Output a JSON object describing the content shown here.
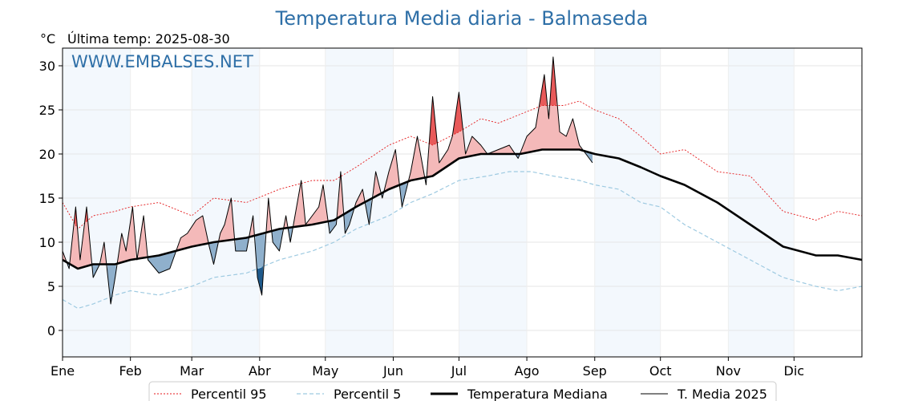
{
  "chart_data": {
    "type": "line",
    "title": "Temperatura Media diaria - Balmaseda",
    "unit_label": "°C",
    "subtitle": "Última temp: 2025-08-30",
    "watermark": "WWW.EMBALSES.NET",
    "ylim": [
      -3,
      32
    ],
    "yticks": [
      0,
      5,
      10,
      15,
      20,
      25,
      30
    ],
    "xlim_day": [
      1,
      366
    ],
    "months": [
      {
        "label": "Ene",
        "day": 1
      },
      {
        "label": "Feb",
        "day": 32
      },
      {
        "label": "Mar",
        "day": 60
      },
      {
        "label": "Abr",
        "day": 91
      },
      {
        "label": "May",
        "day": 121
      },
      {
        "label": "Jun",
        "day": 152
      },
      {
        "label": "Jul",
        "day": 182
      },
      {
        "label": "Ago",
        "day": 213
      },
      {
        "label": "Sep",
        "day": 244
      },
      {
        "label": "Oct",
        "day": 274
      },
      {
        "label": "Nov",
        "day": 305
      },
      {
        "label": "Dic",
        "day": 335
      }
    ],
    "grid": true,
    "legend_position": "bottom-center",
    "series": [
      {
        "key": "p95",
        "name": "Percentil 95",
        "color": "#e41a1c",
        "style": "dotted",
        "points": [
          [
            1,
            14.5
          ],
          [
            8,
            11.5
          ],
          [
            15,
            13
          ],
          [
            25,
            13.5
          ],
          [
            32,
            14
          ],
          [
            45,
            14.5
          ],
          [
            60,
            13
          ],
          [
            70,
            15
          ],
          [
            85,
            14.5
          ],
          [
            100,
            16
          ],
          [
            115,
            17
          ],
          [
            125,
            17
          ],
          [
            135,
            18.5
          ],
          [
            150,
            21
          ],
          [
            160,
            22
          ],
          [
            170,
            21
          ],
          [
            182,
            22.5
          ],
          [
            192,
            24
          ],
          [
            200,
            23.5
          ],
          [
            210,
            24.5
          ],
          [
            220,
            25.5
          ],
          [
            230,
            25.5
          ],
          [
            237,
            26
          ],
          [
            244,
            25
          ],
          [
            255,
            24
          ],
          [
            265,
            22
          ],
          [
            274,
            20
          ],
          [
            285,
            20.5
          ],
          [
            300,
            18
          ],
          [
            315,
            17.5
          ],
          [
            330,
            13.5
          ],
          [
            345,
            12.5
          ],
          [
            355,
            13.5
          ],
          [
            366,
            13
          ]
        ]
      },
      {
        "key": "p5",
        "name": "Percentil 5",
        "color": "#9ecae1",
        "style": "dashed",
        "points": [
          [
            1,
            3.5
          ],
          [
            8,
            2.5
          ],
          [
            15,
            3
          ],
          [
            25,
            4
          ],
          [
            32,
            4.5
          ],
          [
            45,
            4
          ],
          [
            60,
            5
          ],
          [
            70,
            6
          ],
          [
            85,
            6.5
          ],
          [
            100,
            8
          ],
          [
            115,
            9
          ],
          [
            125,
            10
          ],
          [
            135,
            11.5
          ],
          [
            150,
            13
          ],
          [
            160,
            14.5
          ],
          [
            170,
            15.5
          ],
          [
            182,
            17
          ],
          [
            195,
            17.5
          ],
          [
            205,
            18
          ],
          [
            215,
            18
          ],
          [
            225,
            17.5
          ],
          [
            237,
            17
          ],
          [
            244,
            16.5
          ],
          [
            255,
            16
          ],
          [
            265,
            14.5
          ],
          [
            274,
            14
          ],
          [
            285,
            12
          ],
          [
            300,
            10
          ],
          [
            315,
            8
          ],
          [
            330,
            6
          ],
          [
            345,
            5
          ],
          [
            355,
            4.5
          ],
          [
            366,
            5
          ]
        ]
      },
      {
        "key": "median",
        "name": "Temperatura Mediana",
        "color": "#000000",
        "style": "solid-thick",
        "points": [
          [
            1,
            8
          ],
          [
            8,
            7
          ],
          [
            15,
            7.5
          ],
          [
            25,
            7.5
          ],
          [
            32,
            8
          ],
          [
            45,
            8.5
          ],
          [
            60,
            9.5
          ],
          [
            70,
            10
          ],
          [
            85,
            10.5
          ],
          [
            100,
            11.5
          ],
          [
            115,
            12
          ],
          [
            125,
            12.5
          ],
          [
            135,
            14
          ],
          [
            150,
            16
          ],
          [
            160,
            17
          ],
          [
            170,
            17.5
          ],
          [
            182,
            19.5
          ],
          [
            192,
            20
          ],
          [
            200,
            20
          ],
          [
            210,
            20
          ],
          [
            220,
            20.5
          ],
          [
            230,
            20.5
          ],
          [
            237,
            20.5
          ],
          [
            244,
            20
          ],
          [
            255,
            19.5
          ],
          [
            265,
            18.5
          ],
          [
            274,
            17.5
          ],
          [
            285,
            16.5
          ],
          [
            300,
            14.5
          ],
          [
            315,
            12
          ],
          [
            330,
            9.5
          ],
          [
            345,
            8.5
          ],
          [
            355,
            8.5
          ],
          [
            366,
            8
          ]
        ]
      },
      {
        "key": "t2025",
        "name": "T. Media 2025",
        "color": "#000000",
        "style": "solid-thin",
        "points": [
          [
            1,
            9
          ],
          [
            4,
            7
          ],
          [
            7,
            14
          ],
          [
            9,
            8
          ],
          [
            12,
            14
          ],
          [
            15,
            6
          ],
          [
            18,
            7.5
          ],
          [
            20,
            10
          ],
          [
            23,
            3
          ],
          [
            25,
            6
          ],
          [
            28,
            11
          ],
          [
            30,
            9
          ],
          [
            33,
            14
          ],
          [
            35,
            8
          ],
          [
            38,
            13
          ],
          [
            40,
            8
          ],
          [
            45,
            6.5
          ],
          [
            50,
            7
          ],
          [
            55,
            10.5
          ],
          [
            58,
            11
          ],
          [
            62,
            12.5
          ],
          [
            65,
            13
          ],
          [
            68,
            9.5
          ],
          [
            70,
            7.5
          ],
          [
            73,
            11
          ],
          [
            75,
            12
          ],
          [
            78,
            15
          ],
          [
            80,
            9
          ],
          [
            85,
            9
          ],
          [
            88,
            13
          ],
          [
            90,
            6
          ],
          [
            92,
            4
          ],
          [
            95,
            15
          ],
          [
            97,
            10
          ],
          [
            100,
            9
          ],
          [
            103,
            13
          ],
          [
            105,
            10
          ],
          [
            110,
            17
          ],
          [
            112,
            12
          ],
          [
            115,
            13
          ],
          [
            118,
            14
          ],
          [
            120,
            16.5
          ],
          [
            123,
            11
          ],
          [
            126,
            12
          ],
          [
            128,
            18
          ],
          [
            130,
            11
          ],
          [
            132,
            12
          ],
          [
            135,
            14.5
          ],
          [
            138,
            16
          ],
          [
            141,
            12
          ],
          [
            144,
            18
          ],
          [
            147,
            15
          ],
          [
            150,
            18
          ],
          [
            153,
            20.5
          ],
          [
            156,
            14
          ],
          [
            160,
            18
          ],
          [
            163,
            22
          ],
          [
            167,
            16.5
          ],
          [
            170,
            26.5
          ],
          [
            173,
            19
          ],
          [
            177,
            20.5
          ],
          [
            179,
            22
          ],
          [
            182,
            27
          ],
          [
            185,
            20
          ],
          [
            188,
            22
          ],
          [
            192,
            21
          ],
          [
            195,
            20
          ],
          [
            200,
            20.5
          ],
          [
            205,
            21
          ],
          [
            209,
            19.5
          ],
          [
            213,
            22
          ],
          [
            217,
            23
          ],
          [
            221,
            29
          ],
          [
            223,
            24
          ],
          [
            225,
            31
          ],
          [
            228,
            22.5
          ],
          [
            231,
            22
          ],
          [
            234,
            24
          ],
          [
            237,
            21
          ],
          [
            240,
            20
          ],
          [
            243,
            19
          ]
        ]
      }
    ]
  },
  "legend": {
    "items": [
      {
        "label": "Percentil 95"
      },
      {
        "label": "Percentil 5"
      },
      {
        "label": "Temperatura Mediana"
      },
      {
        "label": "T. Media 2025"
      }
    ]
  }
}
